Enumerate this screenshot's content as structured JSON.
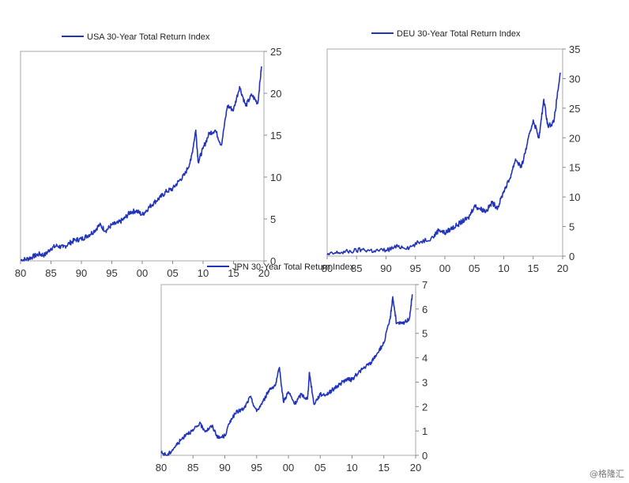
{
  "watermark": "@格隆汇",
  "chart_data": [
    {
      "type": "line",
      "title": "",
      "legend": "USA 30-Year Total Return Index",
      "color": "#2233bb",
      "xlim": [
        1980,
        2020
      ],
      "ylim": [
        0,
        25
      ],
      "x_ticks": [
        1980,
        1985,
        1990,
        1995,
        2000,
        2005,
        2010,
        2015,
        2020
      ],
      "x_tick_labels": [
        "80",
        "85",
        "90",
        "95",
        "00",
        "05",
        "10",
        "15",
        "20"
      ],
      "y_ticks": [
        0,
        5,
        10,
        15,
        20,
        25
      ],
      "y_tick_labels": [
        "0",
        "5",
        "10",
        "15",
        "20",
        "25"
      ],
      "y_axis_side": "right",
      "grid": false,
      "series": [
        {
          "x": [
            1980,
            1981,
            1982,
            1983,
            1984,
            1985,
            1986,
            1987,
            1988,
            1989,
            1990,
            1991,
            1992,
            1993,
            1994,
            1995,
            1996,
            1997,
            1998,
            1999,
            2000,
            2001,
            2002,
            2003,
            2004,
            2005,
            2006,
            2007,
            2008,
            2008.8,
            2009.2,
            2010,
            2011,
            2012,
            2013,
            2014,
            2015,
            2016,
            2017,
            2018,
            2019,
            2019.6
          ],
          "y": [
            0.1,
            0.2,
            0.5,
            0.8,
            0.7,
            1.5,
            1.8,
            1.6,
            2.1,
            2.5,
            2.6,
            3.0,
            3.5,
            4.3,
            3.6,
            4.3,
            4.5,
            5.0,
            5.8,
            6.0,
            5.5,
            6.3,
            7.0,
            7.6,
            8.3,
            8.6,
            9.5,
            10.3,
            12.0,
            15.6,
            11.8,
            13.4,
            15.2,
            15.6,
            13.8,
            18.5,
            18.0,
            20.8,
            18.5,
            19.8,
            18.8,
            23.2
          ]
        }
      ]
    },
    {
      "type": "line",
      "title": "",
      "legend": "DEU 30-Year Total Return Index",
      "color": "#2233bb",
      "xlim": [
        1980,
        2020
      ],
      "ylim": [
        0,
        35
      ],
      "x_ticks": [
        1980,
        1985,
        1990,
        1995,
        2000,
        2005,
        2010,
        2015,
        2020
      ],
      "x_tick_labels": [
        "80",
        "85",
        "90",
        "95",
        "00",
        "05",
        "10",
        "15",
        "20"
      ],
      "y_ticks": [
        0,
        5,
        10,
        15,
        20,
        25,
        30,
        35
      ],
      "y_tick_labels": [
        "0",
        "5",
        "10",
        "15",
        "20",
        "25",
        "30",
        "35"
      ],
      "y_axis_side": "right",
      "grid": false,
      "series": [
        {
          "x": [
            1980,
            1982,
            1984,
            1986,
            1988,
            1990,
            1992,
            1994,
            1996,
            1998,
            1999,
            2000,
            2001,
            2002,
            2003,
            2004,
            2005,
            2006,
            2007,
            2008,
            2009,
            2010,
            2011,
            2012,
            2013,
            2014,
            2015,
            2016,
            2016.8,
            2017.5,
            2018.5,
            2019.6
          ],
          "y": [
            0.2,
            0.6,
            0.8,
            1.1,
            0.9,
            1.0,
            1.6,
            1.5,
            2.5,
            3.2,
            4.5,
            3.9,
            4.6,
            5.2,
            5.9,
            6.4,
            8.5,
            8.0,
            7.6,
            9.0,
            8.2,
            11.0,
            13.0,
            16.4,
            15.0,
            19.0,
            23.0,
            20.0,
            26.5,
            22.0,
            22.6,
            31.0
          ]
        }
      ]
    },
    {
      "type": "line",
      "title": "",
      "legend": "JPN 30-Year Total Return Index",
      "color": "#2233bb",
      "xlim": [
        1980,
        2020
      ],
      "ylim": [
        0,
        7
      ],
      "x_ticks": [
        1980,
        1985,
        1990,
        1995,
        2000,
        2005,
        2010,
        2015,
        2020
      ],
      "x_tick_labels": [
        "80",
        "85",
        "90",
        "95",
        "00",
        "05",
        "10",
        "15",
        "20"
      ],
      "y_ticks": [
        0,
        1,
        2,
        3,
        4,
        5,
        6,
        7
      ],
      "y_tick_labels": [
        "0",
        "1",
        "2",
        "3",
        "4",
        "5",
        "6",
        "7"
      ],
      "y_axis_side": "right",
      "grid": false,
      "series": [
        {
          "x": [
            1980,
            1981,
            1982,
            1983,
            1984,
            1985,
            1986,
            1987,
            1988,
            1989,
            1990,
            1991,
            1992,
            1993,
            1994,
            1995,
            1996,
            1997,
            1998,
            1998.6,
            1999.2,
            2000,
            2001,
            2002,
            2003,
            2003.3,
            2004,
            2005,
            2006,
            2007,
            2008,
            2009,
            2010,
            2011,
            2012,
            2013,
            2014,
            2015,
            2016,
            2016.4,
            2017,
            2018,
            2019,
            2019.5
          ],
          "y": [
            0.1,
            0.0,
            0.3,
            0.6,
            0.9,
            1.0,
            1.3,
            1.0,
            1.2,
            0.7,
            0.8,
            1.5,
            1.8,
            1.9,
            2.4,
            1.8,
            2.2,
            2.7,
            2.9,
            3.6,
            2.2,
            2.6,
            2.1,
            2.5,
            2.3,
            3.4,
            2.1,
            2.5,
            2.5,
            2.7,
            2.9,
            3.1,
            3.1,
            3.4,
            3.6,
            3.8,
            4.2,
            4.6,
            5.6,
            6.5,
            5.4,
            5.4,
            5.6,
            6.6
          ]
        }
      ]
    }
  ]
}
